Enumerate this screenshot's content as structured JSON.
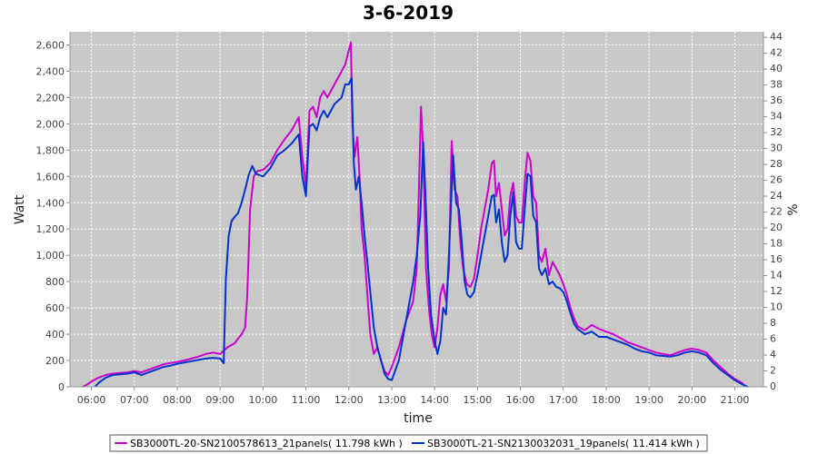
{
  "chart_data": {
    "type": "line",
    "title": "3-6-2019",
    "xlabel": "time",
    "ylabel": "Watt",
    "y2label": "%",
    "x_ticks": [
      "06:00",
      "07:00",
      "08:00",
      "09:00",
      "10:00",
      "11:00",
      "12:00",
      "13:00",
      "14:00",
      "15:00",
      "16:00",
      "17:00",
      "18:00",
      "19:00",
      "20:00",
      "21:00"
    ],
    "xlim": [
      "05:30",
      "21:40"
    ],
    "ylim": [
      0,
      2700
    ],
    "y_ticks": [
      0,
      200,
      400,
      600,
      800,
      1000,
      1200,
      1400,
      1600,
      1800,
      2000,
      2200,
      2400,
      2600
    ],
    "y_tick_labels": [
      "0",
      "200",
      "400",
      "600",
      "800",
      "1,000",
      "1,200",
      "1,400",
      "1,600",
      "1,800",
      "2,000",
      "2,200",
      "2,400",
      "2,600"
    ],
    "y2lim": [
      0,
      44.7
    ],
    "y2_ticks": [
      0,
      2,
      4,
      6,
      8,
      10,
      12,
      14,
      16,
      18,
      20,
      22,
      24,
      26,
      28,
      30,
      32,
      34,
      36,
      38,
      40,
      42,
      44
    ],
    "grid": true,
    "legend_position": "bottom",
    "series": [
      {
        "name": "SB3000TL-20-SN2100578613_21panels( 11.798 kWh )",
        "color": "#cc00cc",
        "points": [
          [
            "05:48",
            0
          ],
          [
            "05:55",
            20
          ],
          [
            "06:00",
            40
          ],
          [
            "06:10",
            70
          ],
          [
            "06:20",
            90
          ],
          [
            "06:30",
            100
          ],
          [
            "06:40",
            105
          ],
          [
            "06:50",
            110
          ],
          [
            "07:00",
            120
          ],
          [
            "07:10",
            110
          ],
          [
            "07:20",
            130
          ],
          [
            "07:30",
            150
          ],
          [
            "07:40",
            170
          ],
          [
            "07:50",
            180
          ],
          [
            "08:00",
            190
          ],
          [
            "08:10",
            200
          ],
          [
            "08:20",
            215
          ],
          [
            "08:30",
            230
          ],
          [
            "08:40",
            250
          ],
          [
            "08:50",
            260
          ],
          [
            "09:00",
            250
          ],
          [
            "09:10",
            300
          ],
          [
            "09:20",
            330
          ],
          [
            "09:30",
            400
          ],
          [
            "09:35",
            450
          ],
          [
            "09:38",
            700
          ],
          [
            "09:42",
            1350
          ],
          [
            "09:47",
            1600
          ],
          [
            "09:52",
            1640
          ],
          [
            "10:00",
            1650
          ],
          [
            "10:10",
            1700
          ],
          [
            "10:20",
            1800
          ],
          [
            "10:30",
            1880
          ],
          [
            "10:40",
            1950
          ],
          [
            "10:50",
            2050
          ],
          [
            "10:55",
            1750
          ],
          [
            "11:00",
            1520
          ],
          [
            "11:05",
            2100
          ],
          [
            "11:10",
            2130
          ],
          [
            "11:15",
            2050
          ],
          [
            "11:20",
            2200
          ],
          [
            "11:25",
            2250
          ],
          [
            "11:30",
            2200
          ],
          [
            "11:40",
            2300
          ],
          [
            "11:50",
            2400
          ],
          [
            "11:55",
            2450
          ],
          [
            "12:00",
            2560
          ],
          [
            "12:03",
            2620
          ],
          [
            "12:05",
            2000
          ],
          [
            "12:08",
            1750
          ],
          [
            "12:12",
            1900
          ],
          [
            "12:15",
            1600
          ],
          [
            "12:18",
            1200
          ],
          [
            "12:22",
            1000
          ],
          [
            "12:26",
            700
          ],
          [
            "12:30",
            400
          ],
          [
            "12:35",
            250
          ],
          [
            "12:40",
            300
          ],
          [
            "12:45",
            200
          ],
          [
            "12:50",
            120
          ],
          [
            "12:55",
            90
          ],
          [
            "13:00",
            150
          ],
          [
            "13:10",
            300
          ],
          [
            "13:20",
            500
          ],
          [
            "13:30",
            650
          ],
          [
            "13:35",
            900
          ],
          [
            "13:38",
            1500
          ],
          [
            "13:41",
            2130
          ],
          [
            "13:44",
            1800
          ],
          [
            "13:48",
            900
          ],
          [
            "13:52",
            600
          ],
          [
            "13:56",
            400
          ],
          [
            "14:00",
            300
          ],
          [
            "14:04",
            450
          ],
          [
            "14:08",
            700
          ],
          [
            "14:12",
            780
          ],
          [
            "14:16",
            650
          ],
          [
            "14:20",
            900
          ],
          [
            "14:24",
            1870
          ],
          [
            "14:28",
            1500
          ],
          [
            "14:32",
            1450
          ],
          [
            "14:36",
            1100
          ],
          [
            "14:40",
            900
          ],
          [
            "14:45",
            780
          ],
          [
            "14:50",
            760
          ],
          [
            "14:55",
            820
          ],
          [
            "15:00",
            1000
          ],
          [
            "15:05",
            1200
          ],
          [
            "15:10",
            1350
          ],
          [
            "15:15",
            1500
          ],
          [
            "15:20",
            1700
          ],
          [
            "15:23",
            1720
          ],
          [
            "15:26",
            1450
          ],
          [
            "15:30",
            1550
          ],
          [
            "15:34",
            1350
          ],
          [
            "15:38",
            1150
          ],
          [
            "15:42",
            1200
          ],
          [
            "15:46",
            1450
          ],
          [
            "15:50",
            1550
          ],
          [
            "15:54",
            1300
          ],
          [
            "15:58",
            1250
          ],
          [
            "16:02",
            1250
          ],
          [
            "16:06",
            1550
          ],
          [
            "16:10",
            1780
          ],
          [
            "16:14",
            1720
          ],
          [
            "16:18",
            1450
          ],
          [
            "16:22",
            1400
          ],
          [
            "16:26",
            1000
          ],
          [
            "16:30",
            950
          ],
          [
            "16:35",
            1050
          ],
          [
            "16:40",
            850
          ],
          [
            "16:45",
            950
          ],
          [
            "16:50",
            900
          ],
          [
            "16:55",
            850
          ],
          [
            "17:00",
            780
          ],
          [
            "17:05",
            700
          ],
          [
            "17:10",
            600
          ],
          [
            "17:15",
            520
          ],
          [
            "17:20",
            460
          ],
          [
            "17:30",
            430
          ],
          [
            "17:40",
            470
          ],
          [
            "17:50",
            440
          ],
          [
            "18:00",
            420
          ],
          [
            "18:10",
            400
          ],
          [
            "18:20",
            370
          ],
          [
            "18:30",
            340
          ],
          [
            "18:40",
            320
          ],
          [
            "18:50",
            300
          ],
          [
            "19:00",
            280
          ],
          [
            "19:10",
            260
          ],
          [
            "19:20",
            250
          ],
          [
            "19:30",
            240
          ],
          [
            "19:40",
            260
          ],
          [
            "19:50",
            280
          ],
          [
            "20:00",
            290
          ],
          [
            "20:10",
            280
          ],
          [
            "20:20",
            260
          ],
          [
            "20:30",
            200
          ],
          [
            "20:40",
            150
          ],
          [
            "20:50",
            100
          ],
          [
            "21:00",
            60
          ],
          [
            "21:10",
            30
          ],
          [
            "21:15",
            0
          ]
        ]
      },
      {
        "name": "SB3000TL-21-SN2130032031_19panels( 11.414 kWh )",
        "color": "#0033cc",
        "points": [
          [
            "06:05",
            0
          ],
          [
            "06:10",
            30
          ],
          [
            "06:20",
            70
          ],
          [
            "06:30",
            90
          ],
          [
            "06:40",
            95
          ],
          [
            "06:50",
            100
          ],
          [
            "07:00",
            110
          ],
          [
            "07:10",
            90
          ],
          [
            "07:20",
            110
          ],
          [
            "07:30",
            130
          ],
          [
            "07:40",
            150
          ],
          [
            "07:50",
            160
          ],
          [
            "08:00",
            175
          ],
          [
            "08:10",
            185
          ],
          [
            "08:20",
            195
          ],
          [
            "08:30",
            205
          ],
          [
            "08:40",
            215
          ],
          [
            "08:50",
            220
          ],
          [
            "09:00",
            215
          ],
          [
            "09:05",
            180
          ],
          [
            "09:08",
            820
          ],
          [
            "09:12",
            1150
          ],
          [
            "09:16",
            1260
          ],
          [
            "09:20",
            1290
          ],
          [
            "09:25",
            1320
          ],
          [
            "09:30",
            1400
          ],
          [
            "09:35",
            1500
          ],
          [
            "09:40",
            1610
          ],
          [
            "09:45",
            1680
          ],
          [
            "09:50",
            1620
          ],
          [
            "10:00",
            1600
          ],
          [
            "10:10",
            1660
          ],
          [
            "10:20",
            1760
          ],
          [
            "10:30",
            1800
          ],
          [
            "10:40",
            1850
          ],
          [
            "10:50",
            1920
          ],
          [
            "10:55",
            1600
          ],
          [
            "11:00",
            1450
          ],
          [
            "11:05",
            1980
          ],
          [
            "11:10",
            2000
          ],
          [
            "11:15",
            1950
          ],
          [
            "11:20",
            2050
          ],
          [
            "11:25",
            2100
          ],
          [
            "11:30",
            2050
          ],
          [
            "11:40",
            2150
          ],
          [
            "11:50",
            2200
          ],
          [
            "11:55",
            2300
          ],
          [
            "12:00",
            2300
          ],
          [
            "12:04",
            2350
          ],
          [
            "12:07",
            1700
          ],
          [
            "12:10",
            1500
          ],
          [
            "12:14",
            1600
          ],
          [
            "12:18",
            1400
          ],
          [
            "12:22",
            1150
          ],
          [
            "12:26",
            950
          ],
          [
            "12:30",
            720
          ],
          [
            "12:35",
            450
          ],
          [
            "12:40",
            300
          ],
          [
            "12:45",
            200
          ],
          [
            "12:50",
            100
          ],
          [
            "12:55",
            60
          ],
          [
            "13:00",
            50
          ],
          [
            "13:10",
            200
          ],
          [
            "13:20",
            500
          ],
          [
            "13:30",
            800
          ],
          [
            "13:35",
            1000
          ],
          [
            "13:40",
            1300
          ],
          [
            "13:44",
            1860
          ],
          [
            "13:47",
            1500
          ],
          [
            "13:51",
            900
          ],
          [
            "13:55",
            550
          ],
          [
            "14:00",
            350
          ],
          [
            "14:04",
            250
          ],
          [
            "14:08",
            350
          ],
          [
            "14:12",
            600
          ],
          [
            "14:16",
            550
          ],
          [
            "14:20",
            1000
          ],
          [
            "14:26",
            1760
          ],
          [
            "14:30",
            1400
          ],
          [
            "14:34",
            1350
          ],
          [
            "14:38",
            1100
          ],
          [
            "14:42",
            800
          ],
          [
            "14:46",
            700
          ],
          [
            "14:50",
            680
          ],
          [
            "14:55",
            720
          ],
          [
            "15:00",
            850
          ],
          [
            "15:05",
            1000
          ],
          [
            "15:10",
            1150
          ],
          [
            "15:15",
            1300
          ],
          [
            "15:20",
            1450
          ],
          [
            "15:23",
            1460
          ],
          [
            "15:26",
            1250
          ],
          [
            "15:30",
            1350
          ],
          [
            "15:34",
            1100
          ],
          [
            "15:38",
            950
          ],
          [
            "15:42",
            1000
          ],
          [
            "15:46",
            1300
          ],
          [
            "15:50",
            1480
          ],
          [
            "15:54",
            1100
          ],
          [
            "15:58",
            1050
          ],
          [
            "16:02",
            1050
          ],
          [
            "16:06",
            1350
          ],
          [
            "16:10",
            1620
          ],
          [
            "16:14",
            1600
          ],
          [
            "16:18",
            1300
          ],
          [
            "16:22",
            1250
          ],
          [
            "16:26",
            900
          ],
          [
            "16:30",
            850
          ],
          [
            "16:35",
            900
          ],
          [
            "16:40",
            780
          ],
          [
            "16:45",
            800
          ],
          [
            "16:50",
            760
          ],
          [
            "16:55",
            750
          ],
          [
            "17:00",
            720
          ],
          [
            "17:05",
            650
          ],
          [
            "17:10",
            560
          ],
          [
            "17:15",
            480
          ],
          [
            "17:20",
            440
          ],
          [
            "17:30",
            400
          ],
          [
            "17:40",
            420
          ],
          [
            "17:50",
            380
          ],
          [
            "18:00",
            380
          ],
          [
            "18:10",
            360
          ],
          [
            "18:20",
            340
          ],
          [
            "18:30",
            320
          ],
          [
            "18:40",
            290
          ],
          [
            "18:50",
            270
          ],
          [
            "19:00",
            260
          ],
          [
            "19:10",
            240
          ],
          [
            "19:20",
            235
          ],
          [
            "19:30",
            230
          ],
          [
            "19:40",
            240
          ],
          [
            "19:50",
            260
          ],
          [
            "20:00",
            270
          ],
          [
            "20:10",
            260
          ],
          [
            "20:20",
            240
          ],
          [
            "20:30",
            180
          ],
          [
            "20:40",
            130
          ],
          [
            "20:50",
            90
          ],
          [
            "21:00",
            50
          ],
          [
            "21:10",
            20
          ],
          [
            "21:18",
            0
          ]
        ]
      }
    ]
  }
}
